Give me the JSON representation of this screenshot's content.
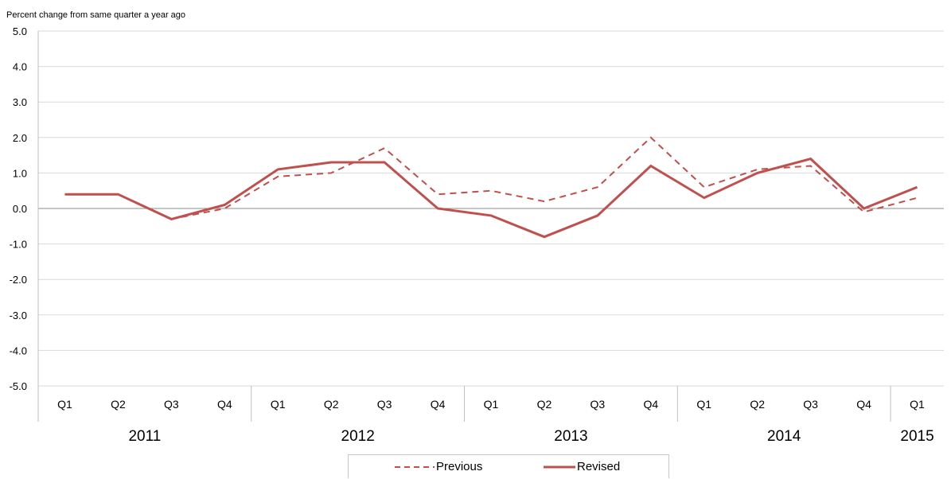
{
  "chart_data": {
    "type": "line",
    "title": "",
    "ylabel": "Percent change from same quarter a year ago",
    "xlabel": "",
    "ylim": [
      -5.0,
      5.0
    ],
    "yticks": [
      "5.0",
      "4.0",
      "3.0",
      "2.0",
      "1.0",
      "0.0",
      "-1.0",
      "-2.0",
      "-3.0",
      "-4.0",
      "-5.0"
    ],
    "categories": [
      "Q1",
      "Q2",
      "Q3",
      "Q4",
      "Q1",
      "Q2",
      "Q3",
      "Q4",
      "Q1",
      "Q2",
      "Q3",
      "Q4",
      "Q1",
      "Q2",
      "Q3",
      "Q4",
      "Q1"
    ],
    "years": [
      {
        "label": "2011",
        "quarters": 4
      },
      {
        "label": "2012",
        "quarters": 4
      },
      {
        "label": "2013",
        "quarters": 4
      },
      {
        "label": "2014",
        "quarters": 4
      },
      {
        "label": "2015",
        "quarters": 1
      }
    ],
    "grid": true,
    "legend_position": "bottom",
    "series": [
      {
        "name": "Previous",
        "style": "dashed",
        "color": "#c0504d",
        "values": [
          0.4,
          0.4,
          -0.3,
          0.0,
          0.9,
          1.0,
          1.7,
          0.4,
          0.5,
          0.2,
          0.6,
          2.0,
          0.6,
          1.1,
          1.2,
          -0.1,
          0.3
        ]
      },
      {
        "name": "Revised",
        "style": "solid",
        "color": "#c0504d",
        "values": [
          0.4,
          0.4,
          -0.3,
          0.1,
          1.1,
          1.3,
          1.3,
          0.0,
          -0.2,
          -0.8,
          -0.2,
          1.2,
          0.3,
          1.0,
          1.4,
          0.0,
          0.6
        ]
      }
    ]
  }
}
